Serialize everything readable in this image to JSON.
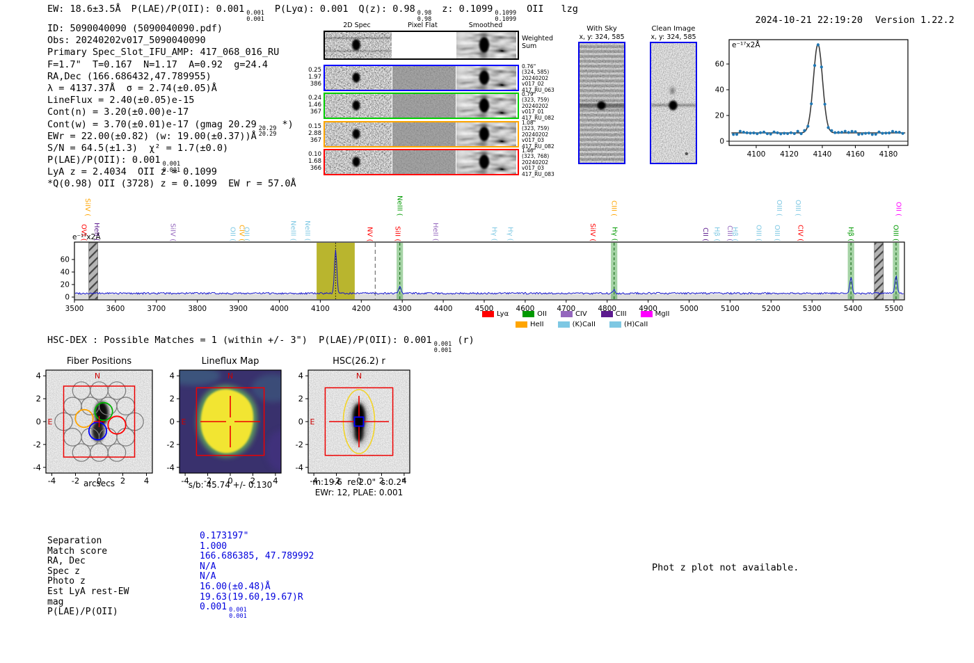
{
  "palette": {
    "value_blue": "#0000dd",
    "spectrum_blue": "#1414cc",
    "fit_gray": "#3a3a3a",
    "dot_blue": "#1f77b4",
    "lya_red": "#ff0000",
    "oii_green": "#009900",
    "civ_purple": "#9467bd",
    "ciii_darkpurple": "#5c1a8e",
    "mgii_magenta": "#ff00ff",
    "heii_orange": "#ffa500",
    "caii_lightblue": "#7ec8e3",
    "band_yellow": "#b9b52e",
    "band_green_fill": "rgba(40,150,40,0.42)",
    "cutout_borders": [
      "#0000ff",
      "#00cc00",
      "#ffa500",
      "#ff0000"
    ]
  },
  "header": {
    "segments": [
      {
        "t": "EW: 18.6±3.5Å"
      },
      {
        "t": "P(LAE)/P(OII): 0.001",
        "hi": "0.001",
        "lo": "0.001"
      },
      {
        "t": "P(Lyα): 0.001"
      },
      {
        "t": "Q(z): 0.98",
        "hi": "0.98",
        "lo": "0.98"
      },
      {
        "t": "z: 0.1099",
        "hi": "0.1099",
        "lo": "0.1099"
      },
      {
        "t": "OII"
      },
      {
        "t": "lzg"
      }
    ],
    "timestamp": "2024-10-21 22:19:20",
    "version": "Version 1.22.2"
  },
  "info": {
    "lines": [
      {
        "t": "ID: 5090040090 (5090040090.pdf)"
      },
      {
        "t": "Obs: 20240202v017_5090040090"
      },
      {
        "t": "Primary Spec_Slot_IFU_AMP: 417_068_016_RU"
      },
      {
        "t": "F=1.7\"  T=0.167  N=1.17  A=0.92  g=24.4"
      },
      {
        "t": "RA,Dec (166.686432,47.789955)"
      },
      {
        "t": "λ = 4137.37Å  σ = 2.74(±0.05)Å"
      },
      {
        "t": "LineFlux = 2.40(±0.05)e-15"
      },
      {
        "t": "Cont(n) = 3.20(±0.00)e-17"
      },
      {
        "t": "Cont(w) = 3.70(±0.01)e-17 (gmag 20.29",
        "hi": "20.29",
        "lo": "20.29",
        "s": " *)"
      },
      {
        "t": "EWr = 22.00(±0.82) (w: 19.00(±0.37))Å"
      },
      {
        "t": "S/N = 64.5(±1.3)  χ² = 1.7(±0.0)"
      },
      {
        "t": "P(LAE)/P(OII): 0.001",
        "hi": "0.001",
        "lo": "0.001"
      },
      {
        "t": "LyA z = 2.4034  OII z = 0.1099"
      },
      {
        "t": "*Q(0.98) OII (3728) z = 0.1099  EW r = 57.0Å"
      }
    ]
  },
  "cutouts": {
    "col_headers": [
      "2D Spec",
      "Pixel Flat",
      "Smoothed"
    ],
    "weighted_line1": "Weighted",
    "weighted_line2": "Sum",
    "rows": [
      {
        "left": [
          "0.25",
          "1.97",
          "386"
        ],
        "right": [
          "0.76\"",
          "(324, 585)",
          "20240202",
          "v017_02",
          "417_RU_063"
        ]
      },
      {
        "left": [
          "0.24",
          "1.46",
          "367"
        ],
        "right": [
          "0.79\"",
          "(323, 759)",
          "20240202",
          "v017_01",
          "417_RU_082"
        ]
      },
      {
        "left": [
          "0.15",
          "2.88",
          "367"
        ],
        "right": [
          "1.08\"",
          "(323, 759)",
          "20240202",
          "v017_03",
          "417_RU_082"
        ]
      },
      {
        "left": [
          "0.10",
          "1.68",
          "366"
        ],
        "right": [
          "1.46\"",
          "(323, 768)",
          "20240202",
          "v017_03",
          "417_RU_083"
        ]
      }
    ]
  },
  "sky_panels": [
    {
      "title": "With Sky",
      "coords": "x, y: 324, 585"
    },
    {
      "title": "Clean Image",
      "coords": "x, y: 324, 585"
    }
  ],
  "zoom_plot": {
    "unit_label": "e⁻¹⁷x2Å",
    "yticks": [
      0,
      20,
      40,
      60
    ],
    "xticks": [
      4100,
      4120,
      4140,
      4160,
      4180
    ]
  },
  "spectrum": {
    "unit_label": "e⁻¹⁷x2Å",
    "yticks": [
      0,
      20,
      40,
      60
    ],
    "xticks": [
      3500,
      3600,
      3700,
      3800,
      3900,
      4000,
      4100,
      4200,
      4300,
      4400,
      4500,
      4600,
      4700,
      4800,
      4900,
      5000,
      5100,
      5200,
      5300,
      5400,
      5500
    ],
    "legend": [
      {
        "label": "Lyα",
        "color": "lya"
      },
      {
        "label": "OII",
        "color": "oii"
      },
      {
        "label": "CIV",
        "color": "civ"
      },
      {
        "label": "CIII",
        "color": "ciii"
      },
      {
        "label": "MgII",
        "color": "mgii"
      },
      {
        "label": "HeII",
        "color": "heii"
      },
      {
        "label": "(K)CaII",
        "color": "caii"
      },
      {
        "label": "(H)CaII",
        "color": "caii"
      }
    ],
    "line_labels": [
      {
        "label": "SiIV (",
        "color": "heii",
        "wave": 3532,
        "tier": 2
      },
      {
        "label": "OVI (",
        "color": "lya",
        "wave": 3523,
        "tier": 1
      },
      {
        "label": "HeII (",
        "color": "ciii",
        "wave": 3554,
        "tier": 1
      },
      {
        "label": "SiIV (",
        "color": "civ",
        "wave": 3740,
        "tier": 1
      },
      {
        "label": "OII (",
        "color": "caii",
        "wave": 3886,
        "tier": 1
      },
      {
        "label": "CIV (",
        "color": "heii",
        "wave": 3908,
        "tier": 1
      },
      {
        "label": "OII (",
        "color": "caii",
        "wave": 3920,
        "tier": 1
      },
      {
        "label": "NeIII (",
        "color": "caii",
        "wave": 4034,
        "tier": 1
      },
      {
        "label": "NeIII (",
        "color": "caii",
        "wave": 4069,
        "tier": 1
      },
      {
        "label": "NV (",
        "color": "lya",
        "wave": 4221,
        "tier": 1
      },
      {
        "label": "NeIII (",
        "color": "oii",
        "wave": 4294,
        "tier": 2
      },
      {
        "label": "SiII (",
        "color": "lya",
        "wave": 4289,
        "tier": 1
      },
      {
        "label": "HeII (",
        "color": "civ",
        "wave": 4381,
        "tier": 1
      },
      {
        "label": "Hγ (",
        "color": "caii",
        "wave": 4525,
        "tier": 1
      },
      {
        "label": "Hγ (",
        "color": "caii",
        "wave": 4564,
        "tier": 1
      },
      {
        "label": "SiIV (",
        "color": "lya",
        "wave": 4765,
        "tier": 1
      },
      {
        "label": "CIII (",
        "color": "heii",
        "wave": 4817,
        "tier": 2
      },
      {
        "label": "Hγ (",
        "color": "oii",
        "wave": 4818,
        "tier": 1
      },
      {
        "label": "CII (",
        "color": "ciii",
        "wave": 5040,
        "tier": 1
      },
      {
        "label": "Hβ (",
        "color": "caii",
        "wave": 5068,
        "tier": 1
      },
      {
        "label": "CIII (",
        "color": "civ",
        "wave": 5099,
        "tier": 1
      },
      {
        "label": "Hβ (",
        "color": "caii",
        "wave": 5112,
        "tier": 1
      },
      {
        "label": "OIII (",
        "color": "caii",
        "wave": 5170,
        "tier": 1
      },
      {
        "label": "OIII (",
        "color": "caii",
        "wave": 5215,
        "tier": 1
      },
      {
        "label": "OIII (",
        "color": "caii",
        "wave": 5220,
        "tier": 2
      },
      {
        "label": "OIII (",
        "color": "caii",
        "wave": 5266,
        "tier": 2
      },
      {
        "label": "CIV (",
        "color": "lya",
        "wave": 5272,
        "tier": 1
      },
      {
        "label": "Hβ (",
        "color": "oii",
        "wave": 5395,
        "tier": 1
      },
      {
        "label": "OIII (",
        "color": "oii",
        "wave": 5504,
        "tier": 1
      },
      {
        "label": "OII (",
        "color": "mgii",
        "wave": 5511,
        "tier": 2
      }
    ]
  },
  "hsc_dex": {
    "segments": [
      {
        "t": "HSC-DEX : Possible Matches = 1 (within +/- 3\")  P(LAE)/P(OII): 0.001",
        "hi": "0.001",
        "lo": "0.001"
      },
      {
        "t": " (r)"
      }
    ]
  },
  "panels": [
    {
      "title": "Fiber Positions",
      "xlabel": "arcsecs",
      "n_label": "N",
      "e_label": "E",
      "xticks": [
        -4,
        -2,
        0,
        2,
        4
      ],
      "yticks": [
        4,
        2,
        0,
        -2,
        -4
      ]
    },
    {
      "title": "Lineflux Map",
      "caption": "s/b: 45.74 +/- 0.130",
      "n_label": "N",
      "e_label": "E",
      "xticks": [
        -4,
        -2,
        0,
        2,
        4
      ],
      "yticks": [
        4,
        2,
        0,
        -2,
        -4
      ]
    },
    {
      "title": "HSC(26.2) r",
      "caption1": "m:19.6  re:2.0\"  s:0.2\"",
      "caption2": "EWr: 12, PLAE: 0.001",
      "n_label": "N",
      "e_label": "E",
      "xticks": [
        -4,
        -2,
        0,
        2,
        4
      ],
      "yticks": [
        4,
        2,
        0,
        -2,
        -4
      ]
    }
  ],
  "match_table": {
    "rows": [
      {
        "label": "Separation",
        "value": "0.173197\""
      },
      {
        "label": "Match score",
        "value": "1.000"
      },
      {
        "label": "RA, Dec",
        "value": "166.686385, 47.789992"
      },
      {
        "label": "Spec z",
        "value": "N/A"
      },
      {
        "label": "Photo z",
        "value": "N/A"
      },
      {
        "label": "Est LyA rest-EW",
        "value": "16.00(±0.48)Å"
      },
      {
        "label": "mag",
        "value": "19.63(19.60,19.67)R"
      },
      {
        "label": "P(LAE)/P(OII)",
        "value": "0.001",
        "hi": "0.001",
        "lo": "0.001"
      }
    ]
  },
  "photz_note": "Phot z plot not available.",
  "chart_data": [
    {
      "type": "line",
      "title": "Detected emission line zoom with Gaussian fit",
      "xlabel": "wavelength (Å)",
      "ylabel": "e⁻¹⁷x2Å",
      "xlim": [
        4084,
        4192
      ],
      "ylim": [
        -4,
        82
      ],
      "xticks": [
        4100,
        4120,
        4140,
        4160,
        4180
      ],
      "yticks": [
        0,
        20,
        40,
        60
      ],
      "grid": false,
      "legend_position": "none",
      "series": [
        {
          "name": "gaussian_fit",
          "model": {
            "center": 4137.37,
            "sigma": 2.74,
            "amplitude": 69,
            "baseline": 6.5
          }
        },
        {
          "name": "observed_points",
          "style": "scatter",
          "baseline": 6.5,
          "peak_value": 75
        }
      ]
    },
    {
      "type": "line",
      "title": "Full 1D spectrum",
      "xlabel": "wavelength (Å)",
      "ylabel": "e⁻¹⁷x2Å",
      "xlim": [
        3500,
        5525
      ],
      "ylim": [
        -4,
        88
      ],
      "yticks": [
        0,
        20,
        40,
        60
      ],
      "grid": false,
      "baseline": 6,
      "peaks": [
        {
          "wave": 4137.4,
          "height": 69,
          "sigma": 2.8
        },
        {
          "wave": 4294,
          "height": 11,
          "sigma": 2.6
        },
        {
          "wave": 4817,
          "height": 6,
          "sigma": 2.6
        },
        {
          "wave": 5395,
          "height": 26,
          "sigma": 2.8
        },
        {
          "wave": 5505,
          "height": 28,
          "sigma": 2.8
        }
      ],
      "highlight_bands": [
        {
          "kind": "yellow",
          "range": [
            4091,
            4184
          ]
        },
        {
          "kind": "green",
          "wave": 4294
        },
        {
          "kind": "green",
          "wave": 4817
        },
        {
          "kind": "green",
          "wave": 5395
        },
        {
          "kind": "green",
          "wave": 5505
        }
      ],
      "masked_bands": [
        [
          3535,
          3557
        ],
        [
          5452,
          5474
        ]
      ],
      "vlines": [
        {
          "wave": 4137.4,
          "style": "dotted"
        },
        {
          "wave": 4234,
          "style": "dashed"
        }
      ]
    }
  ]
}
